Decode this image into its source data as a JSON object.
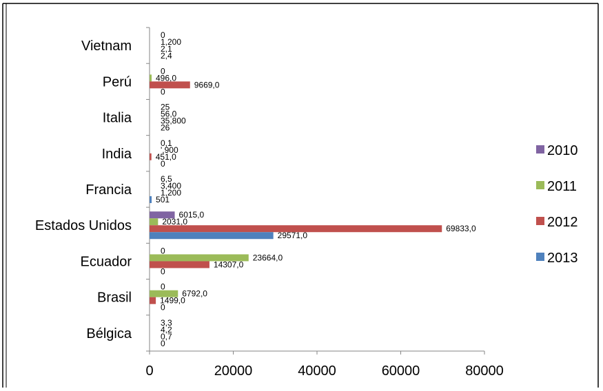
{
  "chart_data": {
    "type": "bar",
    "orientation": "horizontal",
    "title": "",
    "xlabel": "",
    "ylabel": "",
    "xlim": [
      0,
      80000
    ],
    "x_ticks": [
      "0",
      "20000",
      "40000",
      "60000",
      "80000"
    ],
    "grid": false,
    "legend_position": "right",
    "categories": [
      "Vietnam",
      "Perú",
      "Italia",
      "India",
      "Francia",
      "Estados Unidos",
      "Ecuador",
      "Brasil",
      "Bélgica"
    ],
    "series": [
      {
        "name": "2010",
        "color": "#8064a2",
        "values": [
          0,
          0,
          25,
          0.1,
          6.5,
          6015,
          0,
          0,
          3.3
        ],
        "labels": [
          "0",
          "0",
          "25",
          "0,1",
          "6,5",
          "6015,0",
          "0",
          "0",
          "3,3"
        ]
      },
      {
        "name": "2011",
        "color": "#9bbb59",
        "values": [
          1.2,
          496,
          56,
          0.9,
          3.4,
          2031,
          23664,
          6792,
          4.2
        ],
        "labels": [
          "1,200",
          "496,0",
          "56,0",
          "',900",
          "3,400",
          "2031,0",
          "23664,0",
          "6792,0",
          "4,2"
        ]
      },
      {
        "name": "2012",
        "color": "#c0504d",
        "values": [
          2.1,
          9669,
          35.8,
          451,
          1.2,
          69833,
          14307,
          1499,
          0.7
        ],
        "labels": [
          "2,1",
          "9669,0",
          "35,800",
          "451,0",
          "1,200",
          "69833,0",
          "14307,0",
          "1499,0",
          "0,7"
        ]
      },
      {
        "name": "2013",
        "color": "#4f81bd",
        "values": [
          2.4,
          0,
          26,
          0,
          501,
          29571,
          0,
          0,
          0
        ],
        "labels": [
          "2,4",
          "0",
          "26",
          "0",
          "501",
          "29571,0",
          "0",
          "0",
          "0"
        ]
      }
    ]
  }
}
